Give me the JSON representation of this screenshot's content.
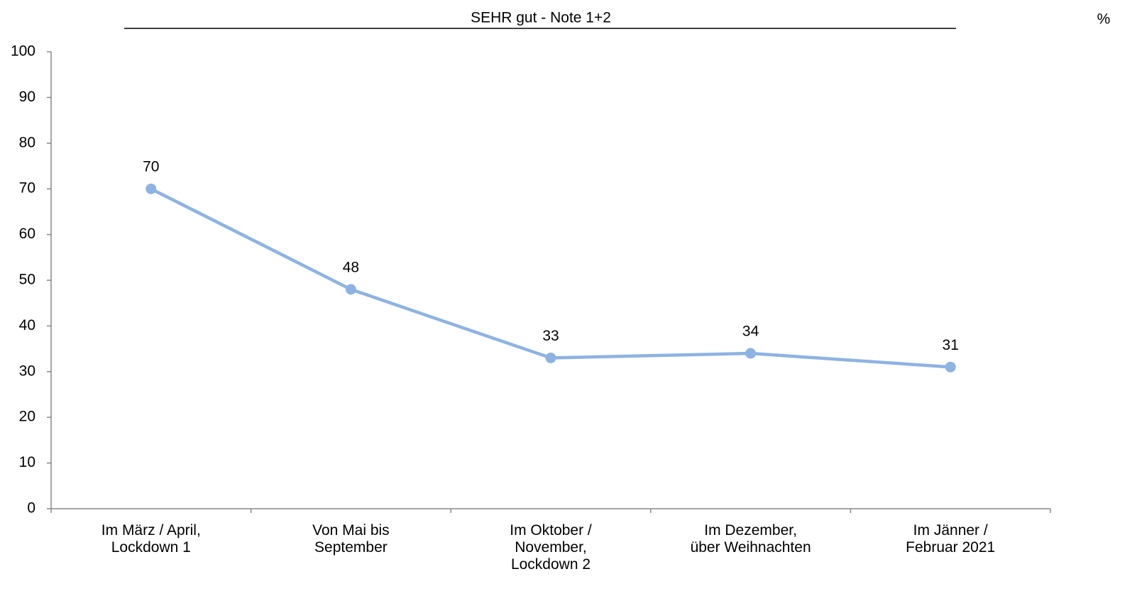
{
  "chart_data": {
    "type": "line",
    "title": "SEHR gut - Note 1+2",
    "unit": "%",
    "categories": [
      "Im März / April,\nLockdown 1",
      "Von Mai bis\nSeptember",
      "Im Oktober /\nNovember,\nLockdown 2",
      "Im Dezember,\nüber Weihnachten",
      "Im Jänner /\nFebruar 2021"
    ],
    "values": [
      70,
      48,
      33,
      34,
      31
    ],
    "color": "#8db3e2",
    "ylim": [
      0,
      100
    ],
    "yticks": [
      0,
      10,
      20,
      30,
      40,
      50,
      60,
      70,
      80,
      90,
      100
    ],
    "grid": false
  }
}
